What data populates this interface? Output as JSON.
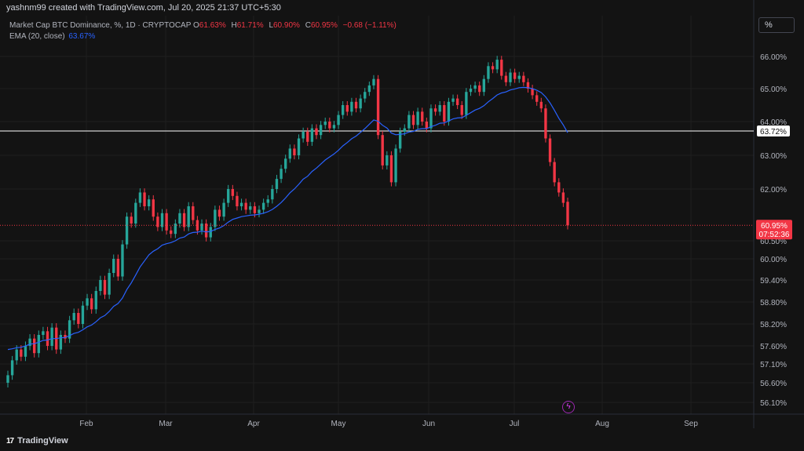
{
  "header": {
    "attribution": "yashnm99 created with TradingView.com, Jul 20, 2025 21:37 UTC+5:30"
  },
  "legend": {
    "symbol": "Market Cap BTC Dominance, %",
    "interval": "1D",
    "exchange": "CRYPTOCAP",
    "open_label": "O",
    "open": "61.63%",
    "high_label": "H",
    "high": "61.71%",
    "low_label": "L",
    "low": "60.90%",
    "close_label": "C",
    "close": "60.95%",
    "change": "−0.68 (−1.11%)",
    "ema_label": "EMA (20, close)",
    "ema_value": "63.67%"
  },
  "toolbar": {
    "unit_label": "%"
  },
  "footer": {
    "brand": "TradingView",
    "logo": "17"
  },
  "icons": {
    "flash": "flash-icon",
    "logo": "tradingview-logo-icon"
  },
  "colors": {
    "background": "#131313",
    "grid": "#1f1f1f",
    "up": "#26a69a",
    "down": "#f23645",
    "ema": "#2962ff",
    "hline": "#ffffff",
    "text": "#d1d4dc"
  },
  "chart_data": {
    "type": "candlestick",
    "xlabel": "",
    "ylabel": "",
    "y_ticks": [
      "66.00%",
      "65.00%",
      "64.00%",
      "63.00%",
      "62.00%",
      "60.50%",
      "60.00%",
      "59.40%",
      "58.80%",
      "58.20%",
      "57.60%",
      "57.10%",
      "56.60%",
      "56.10%"
    ],
    "y_tick_values": [
      66.0,
      65.0,
      64.0,
      63.0,
      62.0,
      60.5,
      60.0,
      59.4,
      58.8,
      58.2,
      57.6,
      57.1,
      56.6,
      56.1
    ],
    "x_ticks": [
      "Feb",
      "Mar",
      "Apr",
      "May",
      "Jun",
      "Jul",
      "Aug",
      "Sep"
    ],
    "horizontal_line": {
      "value": 63.72,
      "label": "63.72%"
    },
    "last_price": {
      "value": 60.95,
      "label": "60.95%",
      "countdown": "07:52:36"
    },
    "grid": true,
    "series": [
      {
        "name": "Market Cap BTC Dominance",
        "kind": "candles",
        "closes": [
          56.8,
          57.2,
          57.5,
          57.3,
          57.6,
          57.8,
          57.4,
          57.9,
          58.0,
          57.6,
          58.1,
          57.5,
          57.9,
          57.8,
          58.3,
          58.5,
          58.2,
          58.7,
          58.9,
          58.6,
          59.1,
          59.4,
          59.0,
          59.6,
          60.0,
          59.5,
          60.4,
          61.2,
          61.0,
          61.6,
          61.9,
          61.5,
          61.7,
          61.2,
          60.9,
          61.3,
          60.8,
          60.7,
          61.0,
          61.3,
          60.9,
          61.5,
          61.1,
          60.8,
          61.0,
          60.6,
          60.9,
          61.4,
          61.2,
          61.6,
          62.0,
          61.8,
          61.5,
          61.6,
          61.4,
          61.5,
          61.3,
          61.4,
          61.6,
          61.7,
          62.0,
          62.3,
          62.6,
          62.9,
          63.2,
          63.0,
          63.5,
          63.7,
          63.4,
          63.8,
          63.6,
          63.9,
          64.0,
          63.8,
          63.9,
          64.2,
          64.5,
          64.3,
          64.6,
          64.4,
          64.7,
          64.9,
          65.1,
          65.3,
          63.6,
          62.7,
          63.0,
          62.2,
          63.2,
          63.7,
          63.8,
          64.2,
          63.9,
          64.3,
          64.0,
          63.8,
          64.4,
          64.3,
          64.5,
          64.0,
          64.6,
          64.7,
          64.5,
          64.2,
          64.9,
          65.0,
          65.1,
          64.9,
          65.3,
          65.7,
          65.6,
          65.9,
          65.4,
          65.2,
          65.5,
          65.3,
          65.4,
          65.2,
          65.0,
          64.8,
          64.6,
          64.4,
          63.5,
          62.8,
          62.2,
          61.9,
          61.6,
          60.95
        ],
        "opens": [
          56.6,
          56.8,
          57.2,
          57.5,
          57.3,
          57.6,
          57.8,
          57.4,
          57.9,
          58.0,
          57.6,
          58.1,
          57.5,
          57.9,
          57.8,
          58.3,
          58.5,
          58.2,
          58.7,
          58.9,
          58.6,
          59.1,
          59.4,
          59.0,
          59.6,
          60.0,
          59.5,
          60.4,
          61.2,
          61.0,
          61.6,
          61.9,
          61.5,
          61.7,
          61.2,
          60.9,
          61.3,
          60.8,
          60.7,
          61.0,
          61.3,
          60.9,
          61.5,
          61.1,
          60.8,
          61.0,
          60.6,
          60.9,
          61.4,
          61.2,
          61.6,
          62.0,
          61.8,
          61.5,
          61.6,
          61.4,
          61.5,
          61.3,
          61.4,
          61.6,
          61.7,
          62.0,
          62.3,
          62.6,
          62.9,
          63.2,
          63.0,
          63.5,
          63.7,
          63.4,
          63.8,
          63.6,
          63.9,
          64.0,
          63.8,
          63.9,
          64.2,
          64.5,
          64.3,
          64.6,
          64.4,
          64.7,
          64.9,
          65.1,
          65.3,
          63.6,
          62.7,
          63.0,
          62.2,
          63.2,
          63.7,
          63.8,
          64.2,
          63.9,
          64.3,
          64.0,
          63.8,
          64.4,
          64.3,
          64.5,
          64.0,
          64.6,
          64.7,
          64.5,
          64.2,
          64.9,
          65.0,
          65.1,
          64.9,
          65.3,
          65.7,
          65.6,
          65.9,
          65.4,
          65.2,
          65.5,
          65.3,
          65.4,
          65.2,
          65.0,
          64.8,
          64.6,
          64.4,
          63.5,
          62.8,
          62.2,
          61.9,
          61.63
        ]
      },
      {
        "name": "EMA (20, close)",
        "kind": "line",
        "values": [
          57.5,
          57.52,
          57.55,
          57.56,
          57.6,
          57.65,
          57.66,
          57.7,
          57.75,
          57.76,
          57.8,
          57.8,
          57.82,
          57.83,
          57.88,
          57.94,
          57.97,
          58.04,
          58.12,
          58.17,
          58.26,
          58.37,
          58.43,
          58.54,
          58.68,
          58.76,
          58.91,
          59.14,
          59.32,
          59.54,
          59.77,
          59.94,
          60.11,
          60.21,
          60.28,
          60.38,
          60.42,
          60.45,
          60.5,
          60.58,
          60.61,
          60.7,
          60.74,
          60.75,
          60.78,
          60.76,
          60.77,
          60.83,
          60.87,
          60.94,
          61.04,
          61.12,
          61.16,
          61.2,
          61.22,
          61.24,
          61.25,
          61.27,
          61.3,
          61.34,
          61.41,
          61.5,
          61.61,
          61.74,
          61.89,
          62.0,
          62.14,
          62.29,
          62.38,
          62.52,
          62.62,
          62.74,
          62.86,
          62.95,
          63.04,
          63.15,
          63.28,
          63.38,
          63.49,
          63.57,
          63.68,
          63.79,
          63.92,
          64.05,
          64.01,
          63.89,
          63.81,
          63.66,
          63.61,
          63.62,
          63.64,
          63.69,
          63.71,
          63.77,
          63.79,
          63.79,
          63.85,
          63.89,
          63.95,
          63.96,
          64.02,
          64.08,
          64.11,
          64.12,
          64.19,
          64.27,
          64.35,
          64.4,
          64.48,
          64.6,
          64.7,
          64.81,
          64.87,
          64.9,
          64.96,
          64.99,
          65.03,
          65.04,
          65.03,
          65.0,
          64.95,
          64.88,
          64.75,
          64.57,
          64.34,
          64.1,
          63.9,
          63.67
        ]
      }
    ]
  }
}
